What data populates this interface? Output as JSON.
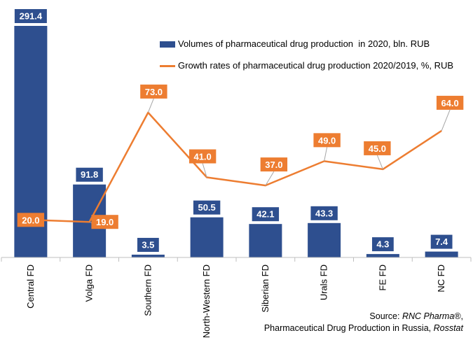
{
  "chart_data": {
    "type": "bar",
    "categories": [
      "Central FD",
      "Volga FD",
      "Southern FD",
      "North-Western FD",
      "Siberian FD",
      "Urals FD",
      "FE FD",
      "NC FD"
    ],
    "series": [
      {
        "name": "Volumes of pharmaceutical drug production  in 2020, bln. RUB",
        "type": "bar",
        "values": [
          291.4,
          91.8,
          3.5,
          50.5,
          42.1,
          43.3,
          4.3,
          7.4
        ],
        "labels": [
          "291.4",
          "91.8",
          "3.5",
          "50.5",
          "42.1",
          "43.3",
          "4.3",
          "7.4"
        ],
        "color": "#2e4f8f"
      },
      {
        "name": "Growth rates of pharmaceutical drug production 2020/2019, %, RUB",
        "type": "line",
        "values": [
          20.0,
          19.0,
          73.0,
          41.0,
          37.0,
          49.0,
          45.0,
          64.0
        ],
        "labels": [
          "20.0",
          "19.0",
          "73.0",
          "41.0",
          "37.0",
          "49.0",
          "45.0",
          "64.0"
        ],
        "color": "#ed7d31"
      }
    ],
    "legend_position": "top-right",
    "grid": false
  },
  "source": {
    "prefix": "Source: ",
    "org": "RNC Pharma®",
    "sep": ",",
    "line2_text": "Pharmaceutical Drug Production in Russia, ",
    "line2_italic": "Rosstat"
  }
}
